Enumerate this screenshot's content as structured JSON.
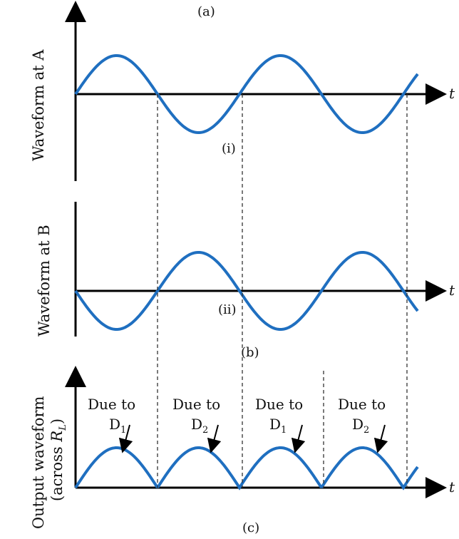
{
  "figure": {
    "panel_labels": [
      "(a)",
      "(i)",
      "(ii)",
      "(b)",
      "(c)"
    ],
    "y_labels": {
      "a": "Waveform at A",
      "b": "Waveform at B",
      "c_line1": "Output waveform",
      "c_line2_prefix": "(across ",
      "c_line2_var": "R",
      "c_line2_sub": "L",
      "c_line2_suffix": ")"
    },
    "axis_label": "t",
    "annotations": [
      {
        "line1": "Due to",
        "diode": "D",
        "sub": "1"
      },
      {
        "line1": "Due to",
        "diode": "D",
        "sub": "2"
      },
      {
        "line1": "Due to",
        "diode": "D",
        "sub": "1"
      },
      {
        "line1": "Due to",
        "diode": "D",
        "sub": "2"
      }
    ]
  },
  "colors": {
    "wave": "#1f6fc0",
    "axis": "#000000",
    "dashed": "#333333",
    "text": "#111111"
  }
}
